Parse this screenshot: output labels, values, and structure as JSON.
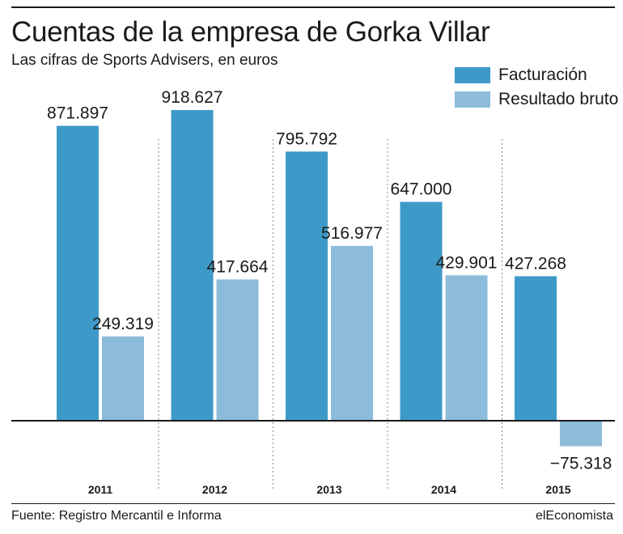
{
  "header": {
    "title": "Cuentas de la empresa de Gorka Villar",
    "subtitle": "Las cifras de Sports Advisers, en euros"
  },
  "colors": {
    "facturacion": "#3d9ac8",
    "resultado": "#8dbcdb",
    "axis": "#1a1a1a",
    "separator": "#888888"
  },
  "chart_data": {
    "type": "bar",
    "categories": [
      "2011",
      "2012",
      "2013",
      "2014",
      "2015"
    ],
    "series": [
      {
        "name": "Facturación",
        "values": [
          871897,
          918627,
          795792,
          647000,
          427268
        ],
        "labels": [
          "871.897",
          "918.627",
          "795.792",
          "647.000",
          "427.268"
        ]
      },
      {
        "name": "Resultado bruto",
        "values": [
          249319,
          417664,
          516977,
          429901,
          -75318
        ],
        "labels": [
          "249.319",
          "417.664",
          "516.977",
          "429.901",
          "−75.318"
        ]
      }
    ],
    "title": "Cuentas de la empresa de Gorka Villar",
    "subtitle": "Las cifras de Sports Advisers, en euros",
    "xlabel": "",
    "ylabel": "",
    "grid": false,
    "legend": "top-right"
  },
  "footer": {
    "source": "Fuente: Registro Mercantil e Informa",
    "brand": "elEconomista"
  }
}
